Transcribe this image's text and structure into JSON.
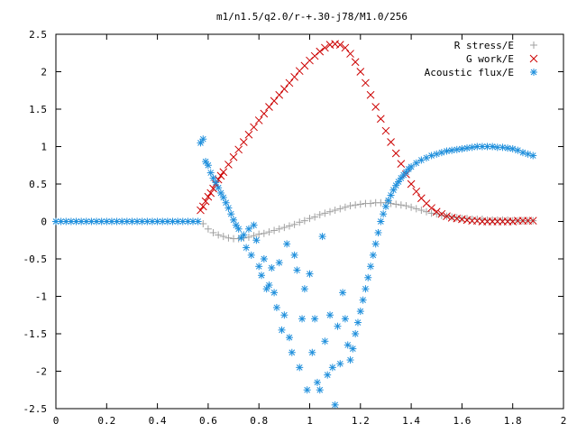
{
  "chart_data": {
    "type": "scatter",
    "title": "m1/n1.5/q2.0/r-+.30-j78/M1.0/256",
    "xlim": [
      0,
      2
    ],
    "ylim": [
      -2.5,
      2.5
    ],
    "x_ticks": [
      "0",
      "0.2",
      "0.4",
      "0.6",
      "0.8",
      "1",
      "1.2",
      "1.4",
      "1.6",
      "1.8",
      "2"
    ],
    "y_ticks": [
      "2.5",
      "2",
      "1.5",
      "1",
      "0.5",
      "0",
      "-0.5",
      "-1",
      "-1.5",
      "-2",
      "-2.5"
    ],
    "grid": false,
    "legend_position": "top-right",
    "series": [
      {
        "name": "R stress/E",
        "marker": "plus",
        "color": "#a0a0a0",
        "x": [
          0.58,
          0.6,
          0.62,
          0.64,
          0.66,
          0.68,
          0.7,
          0.72,
          0.74,
          0.76,
          0.78,
          0.8,
          0.82,
          0.84,
          0.86,
          0.88,
          0.9,
          0.92,
          0.94,
          0.96,
          0.98,
          1.0,
          1.02,
          1.04,
          1.06,
          1.08,
          1.1,
          1.12,
          1.14,
          1.16,
          1.18,
          1.2,
          1.22,
          1.24,
          1.26,
          1.28,
          1.3,
          1.32,
          1.34,
          1.36,
          1.38,
          1.4,
          1.42,
          1.44,
          1.46,
          1.48,
          1.5,
          1.52,
          1.54,
          1.56,
          1.58,
          1.6,
          1.62,
          1.64,
          1.66,
          1.68,
          1.7,
          1.72,
          1.74,
          1.76,
          1.78,
          1.8,
          1.82,
          1.84,
          1.86,
          1.88
        ],
        "y": [
          -0.03,
          -0.1,
          -0.15,
          -0.18,
          -0.2,
          -0.22,
          -0.23,
          -0.23,
          -0.22,
          -0.21,
          -0.19,
          -0.17,
          -0.16,
          -0.14,
          -0.12,
          -0.1,
          -0.08,
          -0.06,
          -0.04,
          -0.01,
          0.01,
          0.04,
          0.06,
          0.09,
          0.11,
          0.13,
          0.15,
          0.17,
          0.19,
          0.21,
          0.22,
          0.23,
          0.24,
          0.24,
          0.25,
          0.25,
          0.25,
          0.24,
          0.23,
          0.22,
          0.21,
          0.19,
          0.17,
          0.15,
          0.13,
          0.11,
          0.1,
          0.08,
          0.07,
          0.06,
          0.05,
          0.04,
          0.04,
          0.03,
          0.03,
          0.03,
          0.02,
          0.02,
          0.02,
          0.02,
          0.02,
          0.01,
          0.01,
          0.01,
          0.01,
          0.01
        ]
      },
      {
        "name": "G work/E",
        "marker": "cross",
        "color": "#cc0000",
        "x": [
          0.57,
          0.58,
          0.59,
          0.6,
          0.61,
          0.62,
          0.63,
          0.64,
          0.65,
          0.66,
          0.68,
          0.7,
          0.72,
          0.74,
          0.76,
          0.78,
          0.8,
          0.82,
          0.84,
          0.86,
          0.88,
          0.9,
          0.92,
          0.94,
          0.96,
          0.98,
          1.0,
          1.02,
          1.04,
          1.06,
          1.08,
          1.1,
          1.12,
          1.14,
          1.16,
          1.18,
          1.2,
          1.22,
          1.24,
          1.26,
          1.28,
          1.3,
          1.32,
          1.34,
          1.36,
          1.38,
          1.4,
          1.42,
          1.44,
          1.46,
          1.48,
          1.5,
          1.52,
          1.54,
          1.56,
          1.58,
          1.6,
          1.62,
          1.64,
          1.66,
          1.68,
          1.7,
          1.72,
          1.74,
          1.76,
          1.78,
          1.8,
          1.82,
          1.84,
          1.86,
          1.88
        ],
        "y": [
          0.15,
          0.2,
          0.27,
          0.33,
          0.38,
          0.44,
          0.5,
          0.56,
          0.61,
          0.66,
          0.76,
          0.86,
          0.96,
          1.06,
          1.16,
          1.26,
          1.35,
          1.44,
          1.53,
          1.61,
          1.69,
          1.77,
          1.85,
          1.93,
          2.01,
          2.08,
          2.15,
          2.21,
          2.27,
          2.32,
          2.36,
          2.37,
          2.36,
          2.32,
          2.24,
          2.13,
          2.0,
          1.85,
          1.69,
          1.53,
          1.37,
          1.21,
          1.06,
          0.91,
          0.77,
          0.63,
          0.5,
          0.4,
          0.31,
          0.24,
          0.18,
          0.13,
          0.1,
          0.07,
          0.05,
          0.04,
          0.03,
          0.02,
          0.01,
          0.01,
          0.0,
          0.0,
          0.0,
          0.0,
          0.0,
          0.0,
          0.0,
          0.01,
          0.01,
          0.01,
          0.01
        ]
      },
      {
        "name": "Acoustic flux/E",
        "marker": "star",
        "color": "#1f8fdc",
        "x": [
          0.0,
          0.02,
          0.04,
          0.06,
          0.08,
          0.1,
          0.12,
          0.14,
          0.16,
          0.18,
          0.2,
          0.22,
          0.24,
          0.26,
          0.28,
          0.3,
          0.32,
          0.34,
          0.36,
          0.38,
          0.4,
          0.42,
          0.44,
          0.46,
          0.48,
          0.5,
          0.52,
          0.54,
          0.56,
          0.57,
          0.58,
          0.59,
          0.6,
          0.61,
          0.62,
          0.63,
          0.64,
          0.65,
          0.66,
          0.67,
          0.68,
          0.69,
          0.7,
          0.71,
          0.72,
          0.73,
          0.74,
          0.75,
          0.76,
          0.77,
          0.78,
          0.79,
          0.8,
          0.81,
          0.82,
          0.83,
          0.84,
          0.85,
          0.86,
          0.87,
          0.88,
          0.89,
          0.9,
          0.91,
          0.92,
          0.93,
          0.94,
          0.95,
          0.96,
          0.97,
          0.98,
          0.99,
          1.0,
          1.01,
          1.02,
          1.03,
          1.04,
          1.05,
          1.06,
          1.07,
          1.08,
          1.09,
          1.1,
          1.11,
          1.12,
          1.13,
          1.14,
          1.15,
          1.16,
          1.17,
          1.18,
          1.19,
          1.2,
          1.21,
          1.22,
          1.23,
          1.24,
          1.25,
          1.26,
          1.27,
          1.28,
          1.29,
          1.3,
          1.31,
          1.32,
          1.33,
          1.34,
          1.35,
          1.36,
          1.37,
          1.38,
          1.39,
          1.4,
          1.42,
          1.44,
          1.46,
          1.48,
          1.5,
          1.52,
          1.54,
          1.56,
          1.58,
          1.6,
          1.62,
          1.64,
          1.66,
          1.68,
          1.7,
          1.72,
          1.74,
          1.76,
          1.78,
          1.8,
          1.82,
          1.84,
          1.86,
          1.88
        ],
        "y": [
          0.0,
          0.0,
          0.0,
          0.0,
          0.0,
          0.0,
          0.0,
          0.0,
          0.0,
          0.0,
          0.0,
          0.0,
          0.0,
          0.0,
          0.0,
          0.0,
          0.0,
          0.0,
          0.0,
          0.0,
          0.0,
          0.0,
          0.0,
          0.0,
          0.0,
          0.0,
          0.0,
          0.0,
          0.0,
          1.05,
          1.1,
          0.8,
          0.75,
          0.65,
          0.58,
          0.52,
          0.45,
          0.38,
          0.32,
          0.25,
          0.18,
          0.1,
          0.02,
          -0.05,
          -0.1,
          -0.22,
          -0.18,
          -0.35,
          -0.1,
          -0.45,
          -0.05,
          -0.25,
          -0.6,
          -0.72,
          -0.5,
          -0.9,
          -0.85,
          -0.62,
          -0.95,
          -1.15,
          -0.55,
          -1.45,
          -1.25,
          -0.3,
          -1.55,
          -1.75,
          -0.45,
          -0.65,
          -1.95,
          -1.3,
          -0.9,
          -2.25,
          -0.7,
          -1.75,
          -1.3,
          -2.15,
          -2.25,
          -0.2,
          -1.6,
          -2.05,
          -1.25,
          -1.95,
          -2.45,
          -1.4,
          -1.9,
          -0.95,
          -1.3,
          -1.65,
          -1.85,
          -1.7,
          -1.5,
          -1.35,
          -1.2,
          -1.05,
          -0.9,
          -0.75,
          -0.6,
          -0.45,
          -0.3,
          -0.15,
          0.0,
          0.1,
          0.2,
          0.28,
          0.35,
          0.42,
          0.48,
          0.53,
          0.58,
          0.62,
          0.66,
          0.7,
          0.73,
          0.78,
          0.82,
          0.85,
          0.88,
          0.9,
          0.92,
          0.94,
          0.95,
          0.96,
          0.97,
          0.98,
          0.99,
          1.0,
          1.0,
          1.0,
          1.0,
          0.99,
          0.99,
          0.98,
          0.97,
          0.95,
          0.92,
          0.9,
          0.88
        ]
      }
    ]
  }
}
